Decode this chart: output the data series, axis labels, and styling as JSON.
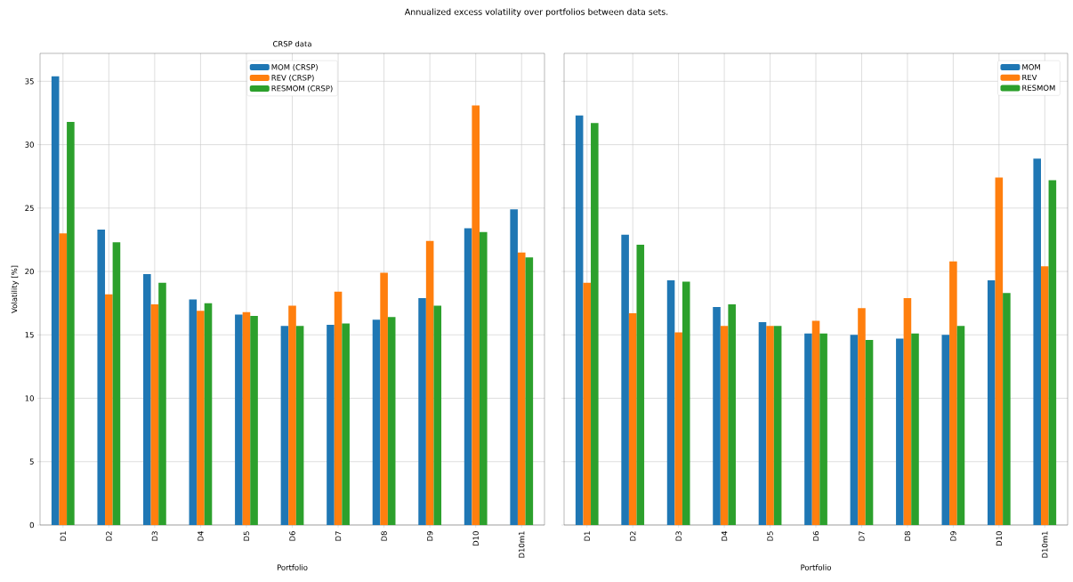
{
  "chart_data": [
    {
      "type": "bar",
      "title": "Annualized excess volatility over portfolios between data sets.",
      "subtitle": "CRSP data",
      "xlabel": "Portfolio",
      "ylabel": "Volatility [%]",
      "categories": [
        "D1",
        "D2",
        "D3",
        "D4",
        "D5",
        "D6",
        "D7",
        "D8",
        "D9",
        "D10",
        "D10m1"
      ],
      "series": [
        {
          "name": "MOM (CRSP)",
          "color": "#1f77b4",
          "values": [
            35.4,
            23.3,
            19.8,
            17.8,
            16.6,
            15.7,
            15.8,
            16.2,
            17.9,
            23.4,
            24.9
          ]
        },
        {
          "name": "REV (CRSP)",
          "color": "#ff7f0e",
          "values": [
            23.0,
            18.2,
            17.4,
            16.9,
            16.8,
            17.3,
            18.4,
            19.9,
            22.4,
            33.1,
            21.5
          ]
        },
        {
          "name": "RESMOM (CRSP)",
          "color": "#2ca02c",
          "values": [
            31.8,
            22.3,
            19.1,
            17.5,
            16.5,
            15.7,
            15.9,
            16.4,
            17.3,
            23.1,
            21.1
          ]
        }
      ],
      "ylim": [
        0,
        37.2
      ],
      "yticks": [
        0,
        5,
        10,
        15,
        20,
        25,
        30,
        35
      ],
      "grid": true,
      "legend": "top"
    },
    {
      "type": "bar",
      "xlabel": "Portfolio",
      "categories": [
        "D1",
        "D2",
        "D3",
        "D4",
        "D5",
        "D6",
        "D7",
        "D8",
        "D9",
        "D10",
        "D10m1"
      ],
      "series": [
        {
          "name": "MOM",
          "color": "#1f77b4",
          "values": [
            32.3,
            22.9,
            19.3,
            17.2,
            16.0,
            15.1,
            15.0,
            14.7,
            15.0,
            19.3,
            28.9
          ]
        },
        {
          "name": "REV",
          "color": "#ff7f0e",
          "values": [
            19.1,
            16.7,
            15.2,
            15.7,
            15.7,
            16.1,
            17.1,
            17.9,
            20.8,
            27.4,
            20.4
          ]
        },
        {
          "name": "RESMOM",
          "color": "#2ca02c",
          "values": [
            31.7,
            22.1,
            19.2,
            17.4,
            15.7,
            15.1,
            14.6,
            15.1,
            15.7,
            18.3,
            27.2
          ]
        }
      ],
      "ylim": [
        0,
        37.2
      ],
      "yticks": [
        0,
        5,
        10,
        15,
        20,
        25,
        30,
        35
      ],
      "grid": true,
      "legend": "top right",
      "tick_labels": "x"
    }
  ]
}
